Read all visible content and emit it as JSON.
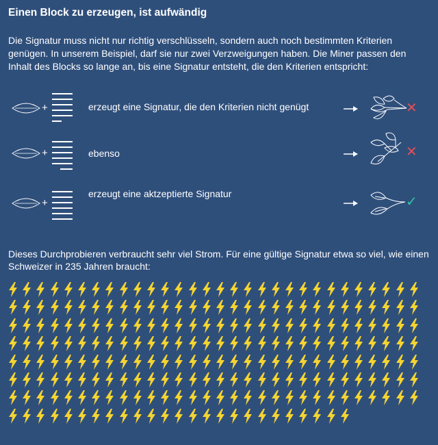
{
  "header": {
    "title": "Einen Block zu erzeugen, ist aufwändig",
    "intro": "Die Signatur muss nicht nur richtig verschlüsseln, sondern auch noch bestimmten Kriterien genügen. In unserem Beispiel, darf sie nur zwei Verzweigungen haben. Die Miner passen den Inhalt des Blocks so lange an, bis eine Signatur entsteht, die den Kriterien entspricht:"
  },
  "rows": [
    {
      "plus": "+",
      "text": "erzeugt eine Signatur, die den Kriterien nicht genügt",
      "status_symbol": "✕",
      "status_color": "#e0505a"
    },
    {
      "plus": "+",
      "text": "ebenso",
      "status_symbol": "✕",
      "status_color": "#e0505a"
    },
    {
      "plus": "+",
      "text": "erzeugt eine aktzeptierte Signatur",
      "status_symbol": "✓",
      "status_color": "#2ec4a0"
    }
  ],
  "footer": {
    "text": "Dieses Durchprobieren verbraucht sehr viel Strom. Für eine gültige Signatur etwa so viel, wie einen Schweizer in 235 Jahren braucht:",
    "bolt_count": 235,
    "bolts_per_row": 30,
    "bolt_color": "#f5d431"
  },
  "colors": {
    "background": "#2f4f7b",
    "line": "#ffffff"
  }
}
